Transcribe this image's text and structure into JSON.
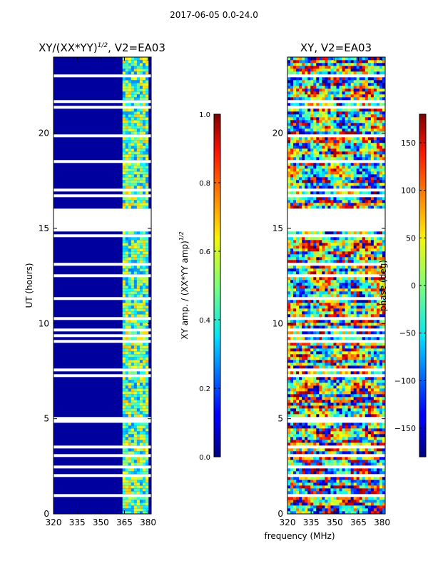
{
  "figure": {
    "suptitle": "2017-06-05 0.0-24.0",
    "shared_xlabel": "frequency (MHz)"
  },
  "chart_data": [
    {
      "type": "heatmap",
      "id": "left",
      "title": "XY/(XX*YY)^{1/2}, V2=EA03",
      "title_main": "XY/(XX*YY)",
      "title_sup": "1/2",
      "title_suffix": ", V2=EA03",
      "xlabel": "",
      "ylabel": "UT (hours)",
      "xlim": [
        320,
        382
      ],
      "ylim": [
        0,
        24
      ],
      "xticks": [
        320,
        335,
        350,
        365,
        380
      ],
      "yticks": [
        0,
        5,
        10,
        15,
        20
      ],
      "colorbar": {
        "label_main": "XY amp. / (XX*YY amp)",
        "label_sup": "1/2",
        "range": [
          0.0,
          1.0
        ],
        "ticks": [
          "0.0",
          "0.2",
          "0.4",
          "0.6",
          "0.8",
          "1.0"
        ],
        "tick_values": [
          0.0,
          0.2,
          0.4,
          0.6,
          0.8,
          1.0
        ]
      },
      "data_gaps_hours": [
        [
          14.9,
          16.0
        ],
        [
          3.4,
          3.6
        ]
      ],
      "bright_band_mhz": [
        363,
        380
      ]
    },
    {
      "type": "heatmap",
      "id": "right",
      "title": "XY, V2=EA03",
      "xlabel": "frequency (MHz)",
      "ylabel": "",
      "xlim": [
        320,
        382
      ],
      "ylim": [
        0,
        24
      ],
      "xticks": [
        320,
        335,
        350,
        365,
        380
      ],
      "yticks": [
        0,
        5,
        10,
        15,
        20
      ],
      "colorbar": {
        "label_main": "phase (deg)",
        "range": [
          -180,
          180
        ],
        "ticks": [
          "150",
          "100",
          "50",
          "0",
          "−50",
          "−100",
          "−150"
        ],
        "tick_values": [
          150,
          100,
          50,
          0,
          -50,
          -100,
          -150
        ]
      },
      "data_gaps_hours": [
        [
          14.9,
          16.0
        ],
        [
          3.4,
          3.6
        ]
      ]
    }
  ]
}
